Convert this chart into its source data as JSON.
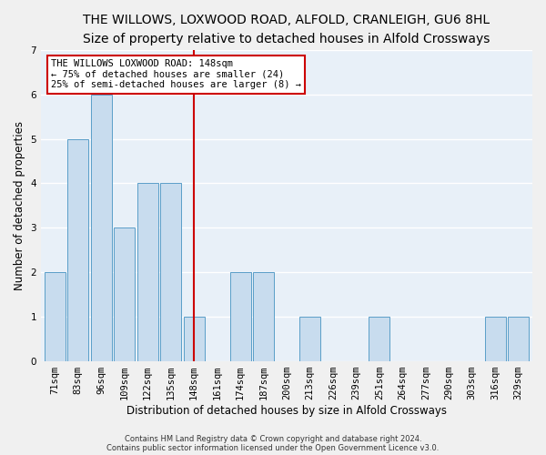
{
  "title": "THE WILLOWS, LOXWOOD ROAD, ALFOLD, CRANLEIGH, GU6 8HL",
  "subtitle": "Size of property relative to detached houses in Alfold Crossways",
  "xlabel": "Distribution of detached houses by size in Alfold Crossways",
  "ylabel": "Number of detached properties",
  "categories": [
    "71sqm",
    "83sqm",
    "96sqm",
    "109sqm",
    "122sqm",
    "135sqm",
    "148sqm",
    "161sqm",
    "174sqm",
    "187sqm",
    "200sqm",
    "213sqm",
    "226sqm",
    "239sqm",
    "251sqm",
    "264sqm",
    "277sqm",
    "290sqm",
    "303sqm",
    "316sqm",
    "329sqm"
  ],
  "values": [
    2,
    5,
    6,
    3,
    4,
    4,
    1,
    0,
    2,
    2,
    0,
    1,
    0,
    0,
    1,
    0,
    0,
    0,
    0,
    1,
    1
  ],
  "bar_color": "#c8dcee",
  "bar_edge_color": "#5a9ec8",
  "highlight_index": 6,
  "highlight_line_color": "#cc0000",
  "ylim": [
    0,
    7
  ],
  "yticks": [
    0,
    1,
    2,
    3,
    4,
    5,
    6,
    7
  ],
  "annotation_text": "THE WILLOWS LOXWOOD ROAD: 148sqm\n← 75% of detached houses are smaller (24)\n25% of semi-detached houses are larger (8) →",
  "annotation_box_color": "#ffffff",
  "annotation_box_edge": "#cc0000",
  "footer1": "Contains HM Land Registry data © Crown copyright and database right 2024.",
  "footer2": "Contains public sector information licensed under the Open Government Licence v3.0.",
  "bg_color": "#dde8f4",
  "plot_bg_color": "#e8f0f8",
  "grid_color": "#ffffff",
  "title_fontsize": 10,
  "subtitle_fontsize": 9,
  "axis_label_fontsize": 8.5,
  "tick_fontsize": 7.5,
  "footer_fontsize": 6,
  "ann_fontsize": 7.5
}
